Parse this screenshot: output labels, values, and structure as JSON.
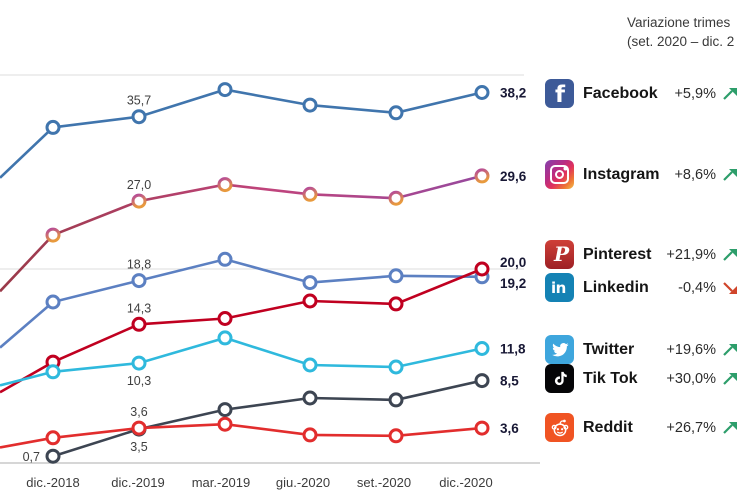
{
  "header": {
    "line1": "Variazione trimes",
    "line2": "(set. 2020 – dic. 2"
  },
  "chart_data": {
    "type": "line",
    "x_labels": [
      "dic.-2018",
      "dic.-2019",
      "mar.-2019",
      "giu.-2020",
      "set.-2020",
      "dic.-2020"
    ],
    "y_gridlines": [
      0,
      20,
      40
    ],
    "ylim": [
      0,
      47
    ],
    "grid": "horizontal-only",
    "note": "left side of plot is cropped; lines enter from the left edge at edge_value",
    "series": [
      {
        "name": "Facebook",
        "color": "#4075ad",
        "edge_value": 29.4,
        "values": [
          34.6,
          35.7,
          38.5,
          36.9,
          36.1,
          38.2
        ],
        "point_labels": [
          {
            "index": 1,
            "text": "35,7",
            "pos": "above"
          }
        ],
        "end_label": "38,2"
      },
      {
        "name": "Instagram",
        "color": "#c0447c",
        "gradient": {
          "line": [
            "#9a3a49",
            "#c0447c",
            "#8b4aa6"
          ],
          "marker": [
            "#b3479c",
            "#e89a3d"
          ]
        },
        "edge_value": 17.7,
        "values": [
          23.5,
          27.0,
          28.7,
          27.7,
          27.3,
          29.6
        ],
        "point_labels": [
          {
            "index": 1,
            "text": "27,0",
            "pos": "above"
          }
        ],
        "end_label": "29,6"
      },
      {
        "name": "Linkedin",
        "color": "#5c80c2",
        "edge_value": 11.9,
        "values": [
          16.6,
          18.8,
          21.0,
          18.6,
          19.3,
          19.2
        ],
        "point_labels": [
          {
            "index": 1,
            "text": "18,8",
            "pos": "above"
          }
        ],
        "end_label": "19,2",
        "end_dy": 11
      },
      {
        "name": "Pinterest",
        "color": "#c00020",
        "edge_value": 7.3,
        "values": [
          10.4,
          14.3,
          14.9,
          16.7,
          16.4,
          20.0
        ],
        "point_labels": [
          {
            "index": 1,
            "text": "14,3",
            "pos": "above"
          }
        ],
        "end_label": "20,0",
        "end_dy": -2
      },
      {
        "name": "Twitter",
        "color": "#2fb9dd",
        "edge_value": 8.0,
        "values": [
          9.4,
          10.3,
          12.9,
          10.1,
          9.9,
          11.8
        ],
        "point_labels": [
          {
            "index": 1,
            "text": "10,3",
            "pos": "below"
          }
        ],
        "end_label": "11,8"
      },
      {
        "name": "Tik Tok",
        "color": "#3d4552",
        "edge_value": null,
        "values": [
          0.7,
          3.5,
          5.5,
          6.7,
          6.5,
          8.5
        ],
        "point_labels": [
          {
            "index": 0,
            "text": "0,7",
            "pos": "left"
          },
          {
            "index": 1,
            "text": "3,5",
            "pos": "below"
          }
        ],
        "end_label": "8,5"
      },
      {
        "name": "Reddit",
        "color": "#e22d2d",
        "edge_value": 1.6,
        "values": [
          2.6,
          3.6,
          4.0,
          2.9,
          2.8,
          3.6
        ],
        "point_labels": [
          {
            "index": 1,
            "text": "3,6",
            "pos": "above"
          }
        ],
        "end_label": "3,6"
      }
    ]
  },
  "legend": {
    "items": [
      {
        "label": "Facebook",
        "change": "+5,9%",
        "trend": "up",
        "icon": "facebook-icon"
      },
      {
        "label": "Instagram",
        "change": "+8,6%",
        "trend": "up",
        "icon": "instagram-icon"
      },
      {
        "label": "Pinterest",
        "change": "+21,9%",
        "trend": "up",
        "icon": "pinterest-icon"
      },
      {
        "label": "Linkedin",
        "change": "-0,4%",
        "trend": "down",
        "icon": "linkedin-icon"
      },
      {
        "label": "Twitter",
        "change": "+19,6%",
        "trend": "up",
        "icon": "twitter-icon"
      },
      {
        "label": "Tik Tok",
        "change": "+30,0%",
        "trend": "up",
        "icon": "tiktok-icon"
      },
      {
        "label": "Reddit",
        "change": "+26,7%",
        "trend": "up",
        "icon": "reddit-icon"
      }
    ]
  },
  "colors": {
    "gridline": "#dcdcdc",
    "axis": "#c8c8c8",
    "point_label": "#3f3f3f",
    "value_label": "#181835",
    "axis_text": "#3c3c3c",
    "trend_up": "#2d9e6b",
    "trend_down": "#d0452b"
  }
}
